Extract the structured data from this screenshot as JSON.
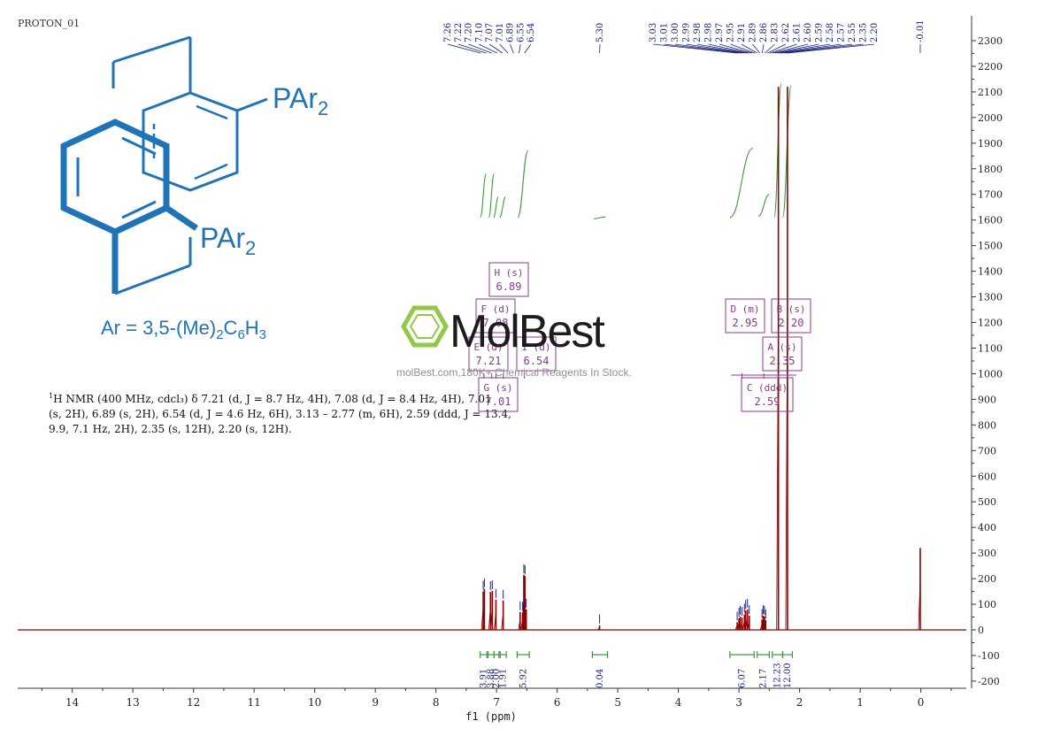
{
  "file_label": "PROTON_01",
  "structure": {
    "substituent_label": "PAr",
    "substituent_subscript": "2",
    "ar_definition": {
      "prefix": "Ar = 3,5-(Me)",
      "sub1": "2",
      "mid": "C",
      "sub2": "6",
      "mid2": "H",
      "sub3": "3"
    }
  },
  "description": {
    "nucleus_sup": "1",
    "line1": "H NMR (400 MHz, cdcl₃) δ 7.21 (d, J = 8.7 Hz, 4H), 7.08 (d, J = 8.4 Hz, 4H), 7.01",
    "line2": "(s, 2H), 6.89 (s, 2H), 6.54 (d, J = 4.6 Hz, 6H), 3.13 – 2.77 (m, 6H), 2.59 (ddd, J = 13.4,",
    "line3": "9.9, 7.1 Hz, 2H), 2.35 (s, 12H), 2.20 (s, 12H)."
  },
  "watermark": {
    "brand_left": "Mol",
    "brand_right": "Best",
    "tagline": "molBest.com,180K+ Chemical Reagents In Stock."
  },
  "colors": {
    "spectrum": "#8b0000",
    "peak_label": "#1a237e",
    "integral": "#3a9a3a",
    "multiplet_box": "#8b3a8b",
    "structure": "#1f73b7",
    "axis": "#333333",
    "watermark_green": "#8cc63f"
  },
  "chart_data": {
    "type": "line",
    "title": "",
    "xlabel": "f1 (ppm)",
    "ylabel": "",
    "xlim": [
      14.9,
      -0.75
    ],
    "ylim": [
      -230,
      2330
    ],
    "x_ticks": [
      14,
      13,
      12,
      11,
      10,
      9,
      8,
      7,
      6,
      5,
      4,
      3,
      2,
      1,
      0
    ],
    "y_ticks": [
      -200,
      -100,
      0,
      100,
      200,
      300,
      400,
      500,
      600,
      700,
      800,
      900,
      1000,
      1100,
      1200,
      1300,
      1400,
      1500,
      1600,
      1700,
      1800,
      1900,
      2000,
      2100,
      2200,
      2300
    ],
    "peaks": [
      {
        "ppm": 7.22,
        "height": 150
      },
      {
        "ppm": 7.2,
        "height": 160
      },
      {
        "ppm": 7.1,
        "height": 148
      },
      {
        "ppm": 7.07,
        "height": 152
      },
      {
        "ppm": 7.01,
        "height": 118
      },
      {
        "ppm": 6.89,
        "height": 115
      },
      {
        "ppm": 6.61,
        "height": 70
      },
      {
        "ppm": 6.57,
        "height": 68
      },
      {
        "ppm": 6.55,
        "height": 215
      },
      {
        "ppm": 6.53,
        "height": 210
      },
      {
        "ppm": 6.51,
        "height": 80
      },
      {
        "ppm": 5.3,
        "height": 18
      },
      {
        "ppm": 3.03,
        "height": 30
      },
      {
        "ppm": 3.0,
        "height": 45
      },
      {
        "ppm": 2.98,
        "height": 52
      },
      {
        "ppm": 2.95,
        "height": 48
      },
      {
        "ppm": 2.91,
        "height": 60
      },
      {
        "ppm": 2.89,
        "height": 75
      },
      {
        "ppm": 2.86,
        "height": 80
      },
      {
        "ppm": 2.83,
        "height": 55
      },
      {
        "ppm": 2.62,
        "height": 40
      },
      {
        "ppm": 2.6,
        "height": 55
      },
      {
        "ppm": 2.58,
        "height": 52
      },
      {
        "ppm": 2.56,
        "height": 38
      },
      {
        "ppm": 2.35,
        "height": 2120
      },
      {
        "ppm": 2.2,
        "height": 2120
      },
      {
        "ppm": 0.01,
        "height": 320
      }
    ],
    "peak_labels_left": [
      "7.26",
      "7.22",
      "7.20",
      "7.10",
      "7.07",
      "7.01",
      "6.89",
      "6.55",
      "6.54"
    ],
    "peak_labels_mid": [
      "5.30"
    ],
    "peak_labels_right": [
      "3.03",
      "3.01",
      "3.00",
      "2.99",
      "2.98",
      "2.98",
      "2.97",
      "2.95",
      "2.91",
      "2.89",
      "2.86",
      "2.83",
      "2.62",
      "2.61",
      "2.60",
      "2.59",
      "2.58",
      "2.57",
      "2.55",
      "2.35",
      "2.20"
    ],
    "peak_labels_tms": [
      "-0.01"
    ],
    "integral_curves": [
      {
        "from": 7.27,
        "to": 7.17,
        "y0": 1610,
        "y1": 1780
      },
      {
        "from": 7.13,
        "to": 7.04,
        "y0": 1610,
        "y1": 1780
      },
      {
        "from": 7.05,
        "to": 6.97,
        "y0": 1610,
        "y1": 1690
      },
      {
        "from": 6.95,
        "to": 6.85,
        "y0": 1610,
        "y1": 1690
      },
      {
        "from": 6.65,
        "to": 6.48,
        "y0": 1610,
        "y1": 1870
      },
      {
        "from": 5.4,
        "to": 5.2,
        "y0": 1605,
        "y1": 1612
      },
      {
        "from": 3.15,
        "to": 2.77,
        "y0": 1610,
        "y1": 1880
      },
      {
        "from": 2.68,
        "to": 2.5,
        "y0": 1615,
        "y1": 1700
      },
      {
        "from": 2.42,
        "to": 2.3,
        "y0": 1610,
        "y1": 2135
      },
      {
        "from": 2.28,
        "to": 2.14,
        "y0": 1610,
        "y1": 2125
      }
    ],
    "integrals": [
      {
        "from": 7.27,
        "to": 7.16,
        "label": "3.91"
      },
      {
        "from": 7.14,
        "to": 7.04,
        "label": "3.88"
      },
      {
        "from": 7.04,
        "to": 6.96,
        "label": "2.00"
      },
      {
        "from": 6.94,
        "to": 6.84,
        "label": "1.91"
      },
      {
        "from": 6.66,
        "to": 6.46,
        "label": "5.92"
      },
      {
        "from": 5.42,
        "to": 5.17,
        "label": "0.04"
      },
      {
        "from": 3.15,
        "to": 2.75,
        "label": "6.07"
      },
      {
        "from": 2.7,
        "to": 2.5,
        "label": "2.17"
      },
      {
        "from": 2.45,
        "to": 2.28,
        "label": "12.23"
      },
      {
        "from": 2.28,
        "to": 2.12,
        "label": "12.00"
      }
    ],
    "multiplets": [
      {
        "name": "H (s)",
        "value": "6.89",
        "ppm": 6.89
      },
      {
        "name": "F (d)",
        "value": "7.08",
        "ppm": 7.08
      },
      {
        "name": "E (d)",
        "value": "7.21",
        "ppm": 7.21
      },
      {
        "name": "I (d)",
        "value": "6.54",
        "ppm": 6.54
      },
      {
        "name": "G (s)",
        "value": "7.01",
        "ppm": 7.01
      },
      {
        "name": "D (m)",
        "value": "2.95",
        "ppm": 2.95
      },
      {
        "name": "B (s)",
        "value": "2.20",
        "ppm": 2.2
      },
      {
        "name": "A (s)",
        "value": "2.35",
        "ppm": 2.35
      },
      {
        "name": "C (ddd)",
        "value": "2.59",
        "ppm": 2.59
      }
    ]
  }
}
